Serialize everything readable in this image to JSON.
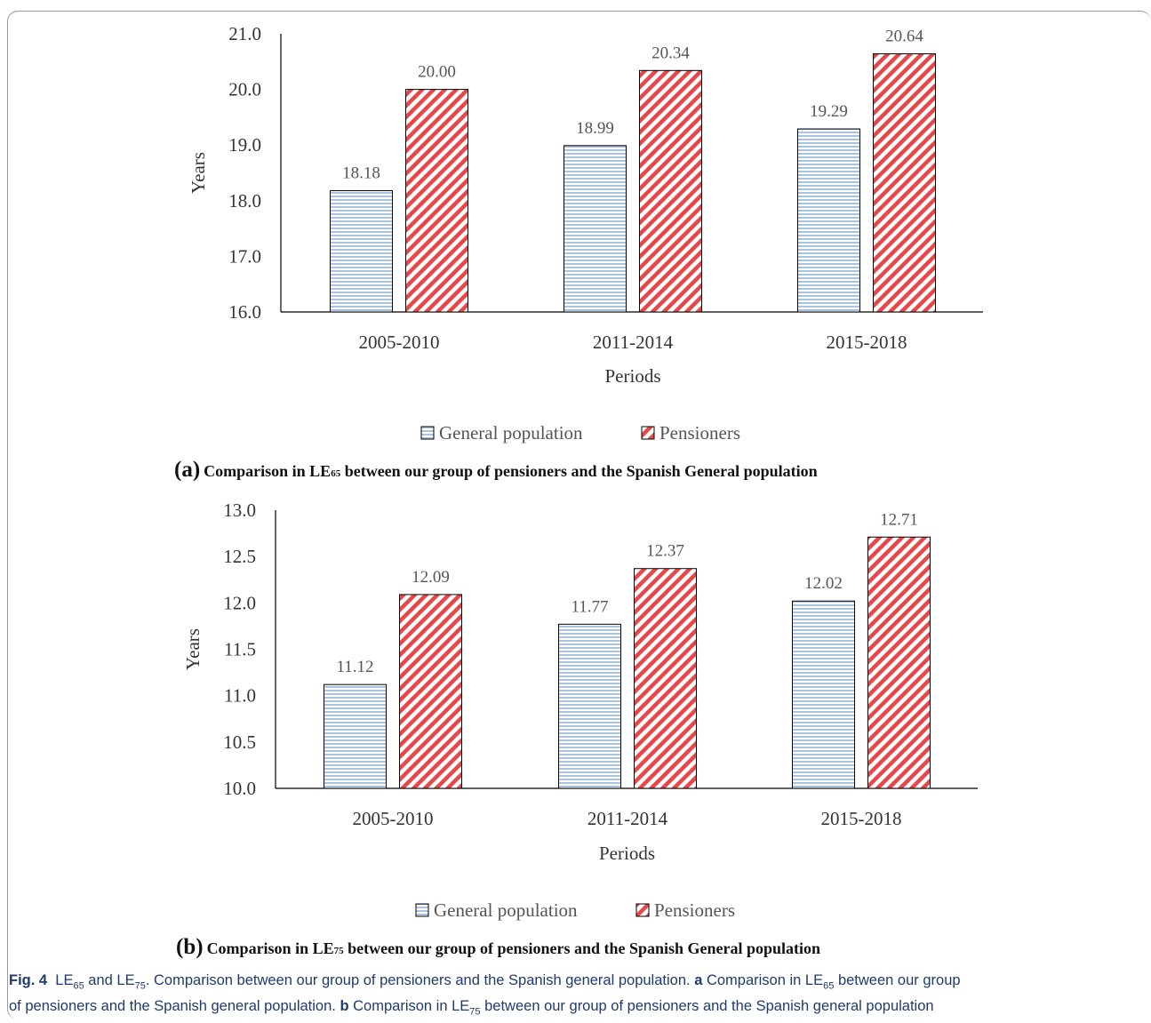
{
  "chart_data": [
    {
      "type": "bar",
      "panel_letter": "(a)",
      "title": "Comparison in LE65 between our group of pensioners and the Spanish General population",
      "title_parts": {
        "prefix": "Comparison in LE",
        "sub": "65",
        "suffix": " between our group of pensioners and the Spanish General population"
      },
      "xlabel": "Periods",
      "ylabel": "Years",
      "ylim": [
        16.0,
        21.0
      ],
      "yticks": [
        "16.0",
        "17.0",
        "18.0",
        "19.0",
        "20.0",
        "21.0"
      ],
      "categories": [
        "2005-2010",
        "2011-2014",
        "2015-2018"
      ],
      "series": [
        {
          "name": "General population",
          "values": [
            18.18,
            18.99,
            19.29
          ],
          "labels": [
            "18.18",
            "18.99",
            "19.29"
          ],
          "color": "#a9c4e0",
          "pattern": "horizontal-lines"
        },
        {
          "name": "Pensioners",
          "values": [
            20.0,
            20.34,
            20.64
          ],
          "labels": [
            "20.00",
            "20.34",
            "20.64"
          ],
          "color": "#e8474a",
          "pattern": "diagonal-lines"
        }
      ],
      "legend": "bottom",
      "grid": false
    },
    {
      "type": "bar",
      "panel_letter": "(b)",
      "title": "Comparison in LE75 between our group of pensioners and the Spanish General population",
      "title_parts": {
        "prefix": "Comparison in LE",
        "sub": "75",
        "suffix": " between our group of pensioners and the Spanish General population"
      },
      "xlabel": "Periods",
      "ylabel": "Years",
      "ylim": [
        10.0,
        13.0
      ],
      "yticks": [
        "10.0",
        "10.5",
        "11.0",
        "11.5",
        "12.0",
        "12.5",
        "13.0"
      ],
      "categories": [
        "2005-2010",
        "2011-2014",
        "2015-2018"
      ],
      "series": [
        {
          "name": "General population",
          "values": [
            11.12,
            11.77,
            12.02
          ],
          "labels": [
            "11.12",
            "11.77",
            "12.02"
          ],
          "color": "#a9c4e0",
          "pattern": "horizontal-lines"
        },
        {
          "name": "Pensioners",
          "values": [
            12.09,
            12.37,
            12.71
          ],
          "labels": [
            "12.09",
            "12.37",
            "12.71"
          ],
          "color": "#e8474a",
          "pattern": "diagonal-lines"
        }
      ],
      "legend": "bottom",
      "grid": false
    }
  ],
  "caption": {
    "fig_label": "Fig. 4",
    "line1_parts": [
      "LE",
      "65",
      " and LE",
      "75",
      ". Comparison between our group of pensioners and the Spanish general population. ",
      "a",
      " Comparison in LE",
      "65",
      " between our group"
    ],
    "line2_parts": [
      "of pensioners and the Spanish general population. ",
      "b",
      " Comparison in LE",
      "75",
      " between our group of pensioners and the Spanish general population"
    ]
  }
}
